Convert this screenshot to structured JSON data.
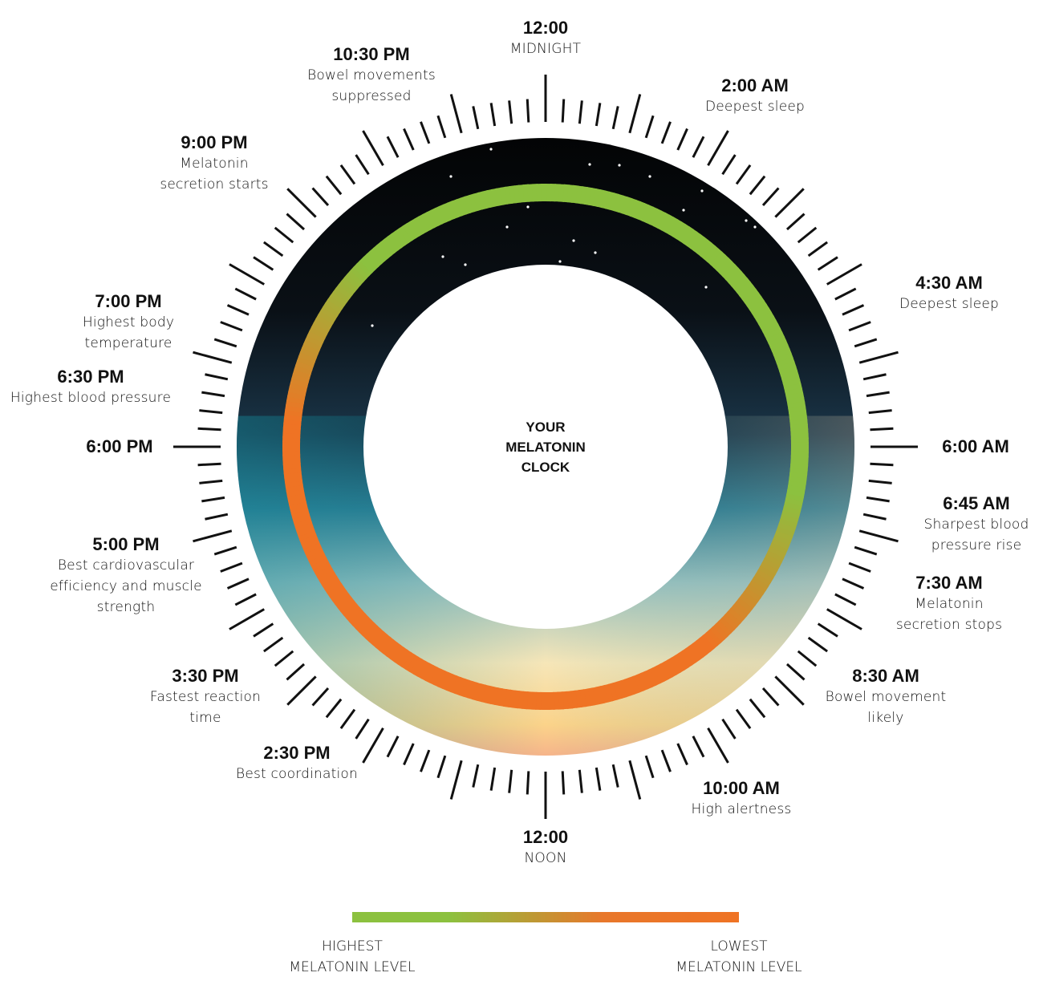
{
  "center_title": [
    "YOUR",
    "MELATONIN",
    "CLOCK"
  ],
  "events": [
    {
      "time": "12:00",
      "desc": [
        "MIDNIGHT"
      ]
    },
    {
      "time": "2:00 AM",
      "desc": [
        "Deepest sleep"
      ]
    },
    {
      "time": "4:30 AM",
      "desc": [
        "Deepest sleep"
      ]
    },
    {
      "time": "6:00 AM",
      "desc": []
    },
    {
      "time": "6:45 AM",
      "desc": [
        "Sharpest blood",
        "pressure rise"
      ]
    },
    {
      "time": "7:30 AM",
      "desc": [
        "Melatonin",
        "secretion stops"
      ]
    },
    {
      "time": "8:30 AM",
      "desc": [
        "Bowel movement",
        "likely"
      ]
    },
    {
      "time": "10:00 AM",
      "desc": [
        "High alertness"
      ]
    },
    {
      "time": "12:00",
      "desc": [
        "NOON"
      ]
    },
    {
      "time": "2:30 PM",
      "desc": [
        "Best coordination"
      ]
    },
    {
      "time": "3:30 PM",
      "desc": [
        "Fastest reaction",
        "time"
      ]
    },
    {
      "time": "5:00 PM",
      "desc": [
        "Best cardiovascular",
        "efficiency and muscle",
        "strength"
      ]
    },
    {
      "time": "6:00 PM",
      "desc": []
    },
    {
      "time": "6:30 PM",
      "desc": [
        "Highest blood pressure"
      ]
    },
    {
      "time": "7:00 PM",
      "desc": [
        "Highest body",
        "temperature"
      ]
    },
    {
      "time": "9:00 PM",
      "desc": [
        "Melatonin",
        "secretion starts"
      ]
    },
    {
      "time": "10:30 PM",
      "desc": [
        "Bowel movements",
        "suppressed"
      ]
    }
  ],
  "legend": {
    "high": [
      "HIGHEST",
      "MELATONIN LEVEL"
    ],
    "low": [
      "LOWEST",
      "MELATONIN LEVEL"
    ]
  },
  "colors": {
    "high": "#8cc13f",
    "low": "#ef7324",
    "night": "#050608",
    "dusk": "#1b8a9c",
    "dawn": "#fbe7b0"
  }
}
